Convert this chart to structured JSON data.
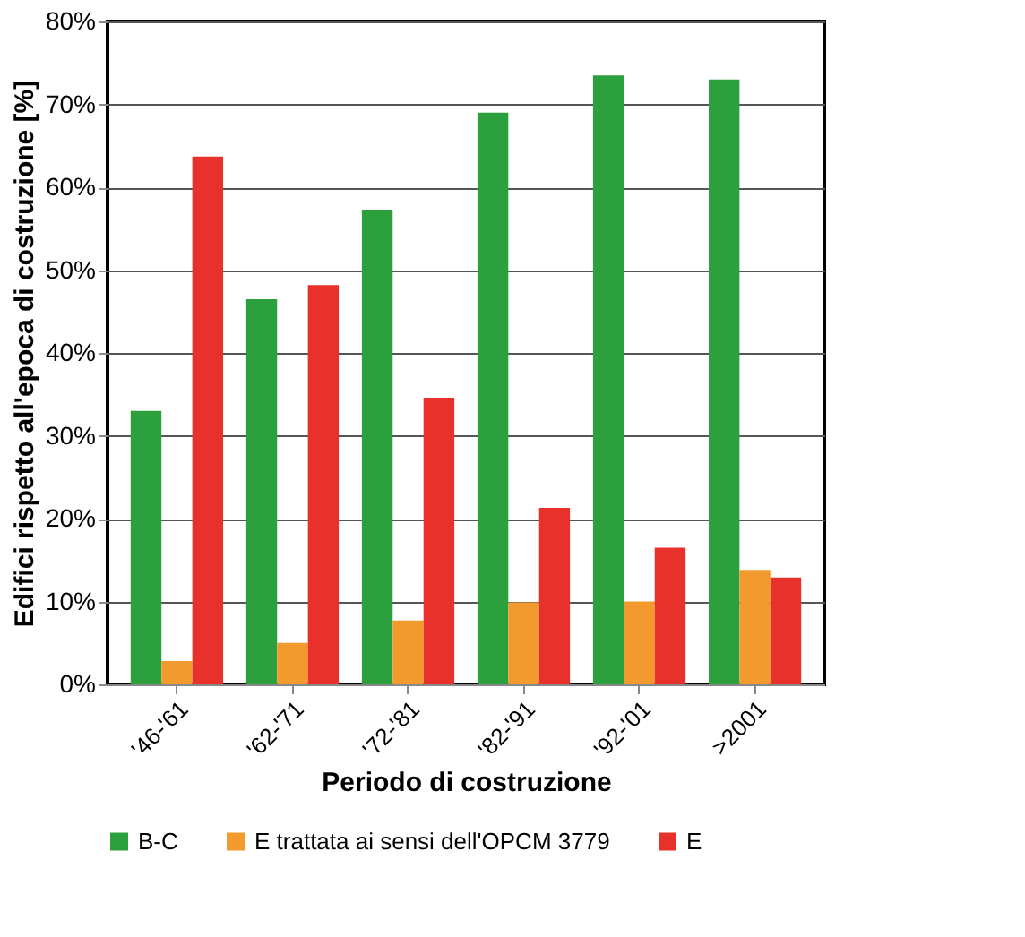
{
  "chart_data": {
    "type": "bar",
    "xlabel": "Periodo di costruzione",
    "ylabel": "Edifici rispetto all'epoca di costruzione [%]",
    "categories": [
      "'46-'61",
      "'62-'71",
      "'72-'81",
      "'82-'91",
      "'92-'01",
      ">2001"
    ],
    "series": [
      {
        "name": "B-C",
        "color": "#2ca03c",
        "values": [
          33,
          46.5,
          57.3,
          69,
          73.5,
          73
        ]
      },
      {
        "name": "E trattata ai sensi dell'OPCM 3779",
        "color": "#f39a2e",
        "values": [
          2.8,
          5,
          7.7,
          9.9,
          10,
          13.8
        ]
      },
      {
        "name": "E",
        "color": "#e8312a",
        "values": [
          63.7,
          48.2,
          34.6,
          21.3,
          16.5,
          12.9
        ]
      }
    ],
    "ylim": [
      0,
      80
    ],
    "yticks": [
      {
        "value": 0,
        "label": "0%"
      },
      {
        "value": 10,
        "label": "10%"
      },
      {
        "value": 20,
        "label": "20%"
      },
      {
        "value": 30,
        "label": "30%"
      },
      {
        "value": 40,
        "label": "40%"
      },
      {
        "value": 50,
        "label": "50%"
      },
      {
        "value": 60,
        "label": "60%"
      },
      {
        "value": 70,
        "label": "70%"
      },
      {
        "value": 80,
        "label": "80%"
      }
    ],
    "grid": "y",
    "legend": "bottom"
  }
}
